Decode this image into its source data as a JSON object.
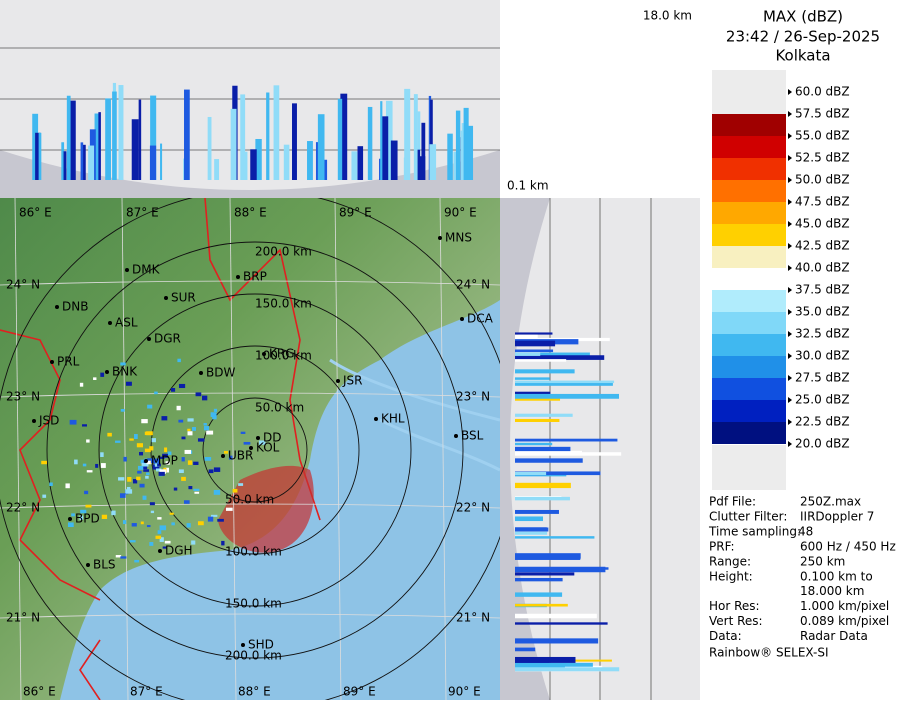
{
  "header": {
    "title": "MAX (dBZ)",
    "time": "23:42 / 26-Sep-2025",
    "station": "Kolkata"
  },
  "heights": {
    "top": "18.0 km",
    "bottom": "0.1 km"
  },
  "legend": {
    "labels": [
      "60.0 dBZ",
      "57.5 dBZ",
      "55.0 dBZ",
      "52.5 dBZ",
      "50.0 dBZ",
      "47.5 dBZ",
      "45.0 dBZ",
      "42.5 dBZ",
      "40.0 dBZ",
      "37.5 dBZ",
      "35.0 dBZ",
      "32.5 dBZ",
      "30.0 dBZ",
      "27.5 dBZ",
      "25.0 dBZ",
      "22.5 dBZ",
      "20.0 dBZ"
    ]
  },
  "info": {
    "rows": [
      [
        "Pdf File:",
        "250Z.max"
      ],
      [
        "Clutter Filter:",
        "IIRDoppler 7"
      ],
      [
        "Time sampling:",
        "48"
      ],
      [
        "PRF:",
        "600 Hz / 450 Hz"
      ],
      [
        "Range:",
        "250 km"
      ],
      [
        "Height:",
        "0.100 km to",
        "18.000 km"
      ],
      [
        "Hor Res:",
        "1.000 km/pixel"
      ],
      [
        "Vert Res:",
        "0.089 km/pixel"
      ],
      [
        "Data:",
        "Radar Data"
      ]
    ]
  },
  "footer": "Rainbow® SELEX-SI",
  "map": {
    "lon_labels": [
      "86° E",
      "87° E",
      "88° E",
      "89° E",
      "90° E"
    ],
    "lat_labels": [
      "24° N",
      "23° N",
      "22° N",
      "21° N"
    ],
    "ring_labels": [
      "50.0 km",
      "100.0 km",
      "150.0 km",
      "200.0 km"
    ],
    "cities": [
      "MNS",
      "DMK",
      "BRP",
      "DNB",
      "SUR",
      "ASL",
      "DCA",
      "DGR",
      "KRG",
      "PRL",
      "BNK",
      "BDW",
      "JSR",
      "KHL",
      "JSD",
      "DD",
      "KOL",
      "BSL",
      "MDP",
      "UBR",
      "BPD",
      "DGH",
      "BLS",
      "SHD"
    ]
  }
}
